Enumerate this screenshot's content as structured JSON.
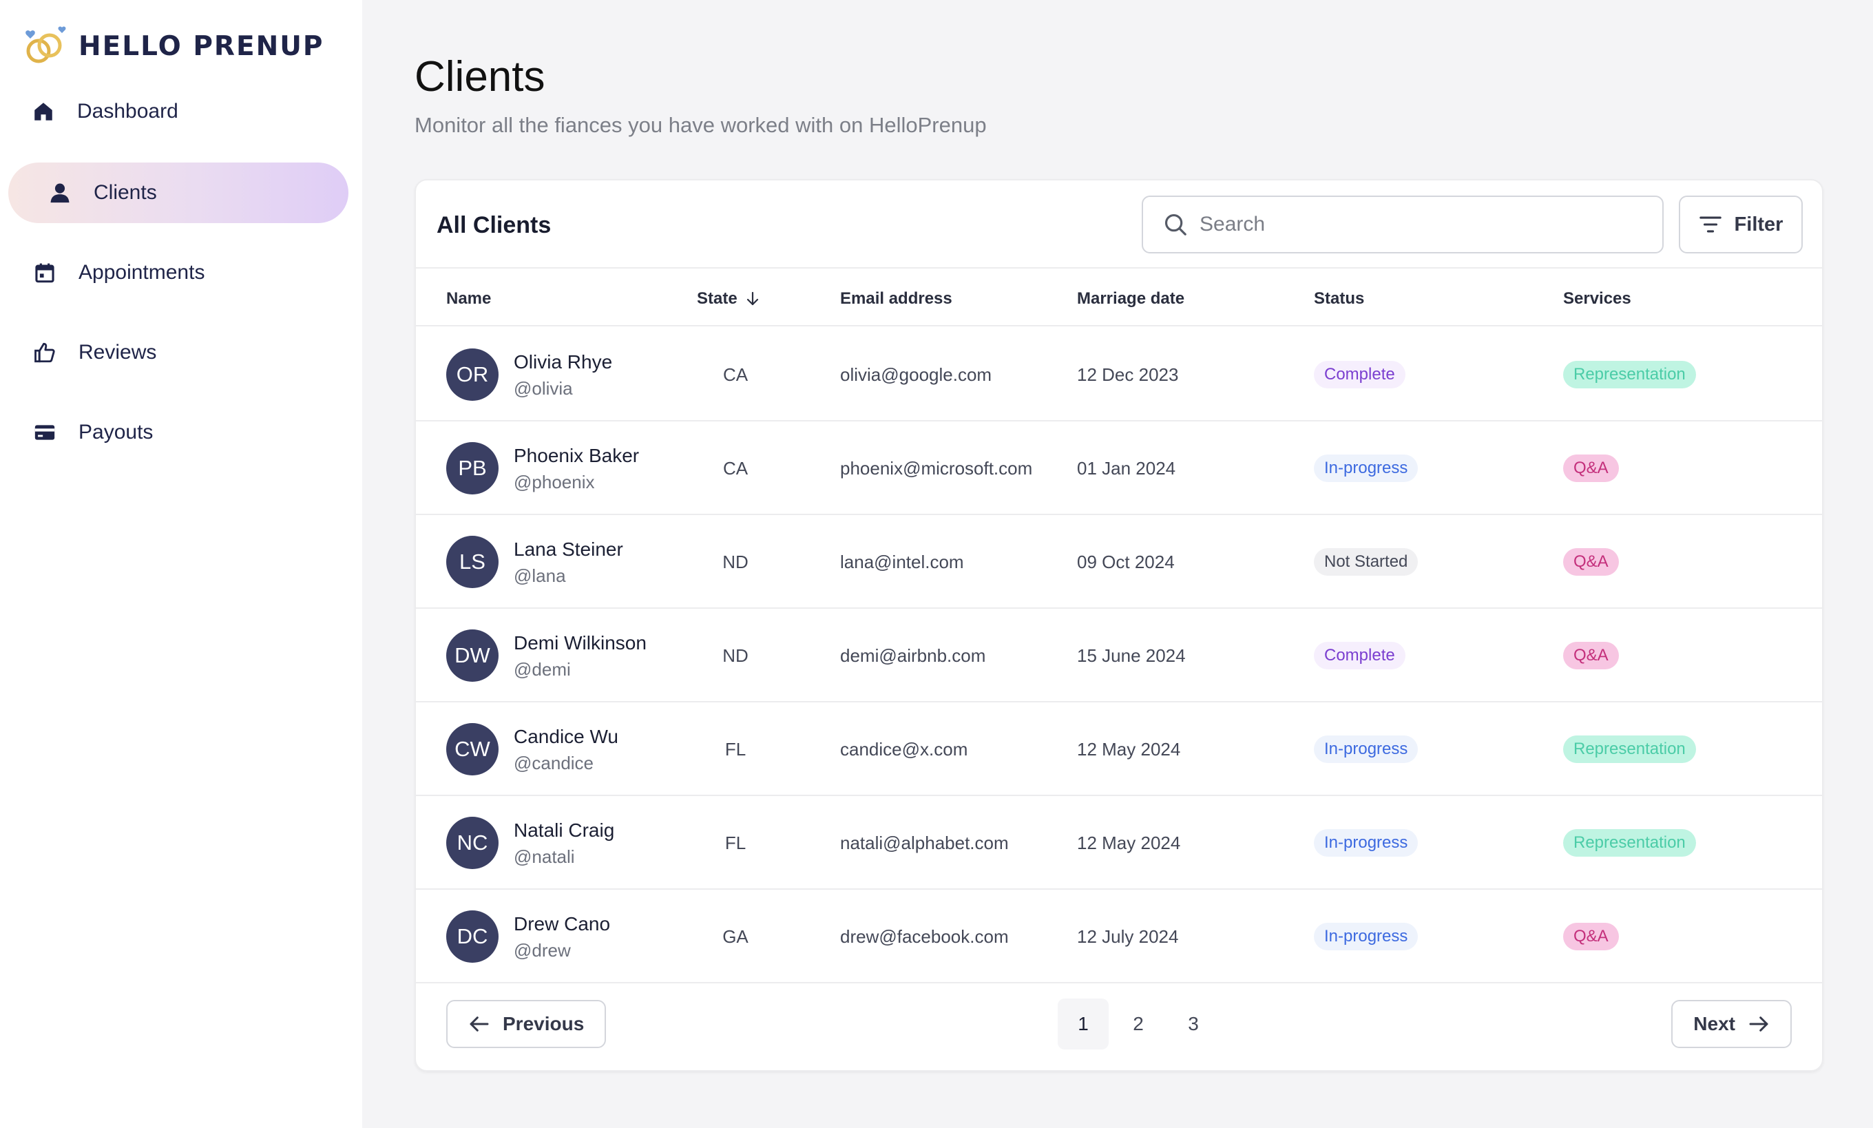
{
  "brand": {
    "name": "HELLO PRENUP"
  },
  "sidebar": {
    "items": [
      {
        "label": "Dashboard",
        "icon": "home-icon"
      },
      {
        "label": "Clients",
        "icon": "user-icon",
        "active": true
      },
      {
        "label": "Appointments",
        "icon": "calendar-icon"
      },
      {
        "label": "Reviews",
        "icon": "thumbs-up-icon"
      },
      {
        "label": "Payouts",
        "icon": "credit-card-icon"
      }
    ]
  },
  "header": {
    "title": "Clients",
    "subtitle": "Monitor all the fiances you have worked with on HelloPrenup"
  },
  "card": {
    "title": "All Clients",
    "search_placeholder": "Search",
    "filter_label": "Filter"
  },
  "table": {
    "columns": [
      "Name",
      "State",
      "Email address",
      "Marriage date",
      "Status",
      "Services"
    ],
    "rows": [
      {
        "initials": "OR",
        "name": "Olivia Rhye",
        "handle": "@olivia",
        "state": "CA",
        "email": "olivia@google.com",
        "date": "12 Dec 2023",
        "status": "Complete",
        "service": "Representation"
      },
      {
        "initials": "PB",
        "name": "Phoenix Baker",
        "handle": "@phoenix",
        "state": "CA",
        "email": "phoenix@microsoft.com",
        "date": "01 Jan 2024",
        "status": "In-progress",
        "service": "Q&A"
      },
      {
        "initials": "LS",
        "name": "Lana Steiner",
        "handle": "@lana",
        "state": "ND",
        "email": "lana@intel.com",
        "date": "09 Oct 2024",
        "status": "Not Started",
        "service": "Q&A"
      },
      {
        "initials": "DW",
        "name": "Demi Wilkinson",
        "handle": "@demi",
        "state": "ND",
        "email": "demi@airbnb.com",
        "date": "15 June 2024",
        "status": "Complete",
        "service": "Q&A"
      },
      {
        "initials": "CW",
        "name": "Candice Wu",
        "handle": "@candice",
        "state": "FL",
        "email": "candice@x.com",
        "date": "12 May 2024",
        "status": "In-progress",
        "service": "Representation"
      },
      {
        "initials": "NC",
        "name": "Natali Craig",
        "handle": "@natali",
        "state": "FL",
        "email": "natali@alphabet.com",
        "date": "12 May 2024",
        "status": "In-progress",
        "service": "Representation"
      },
      {
        "initials": "DC",
        "name": "Drew Cano",
        "handle": "@drew",
        "state": "GA",
        "email": "drew@facebook.com",
        "date": "12 July 2024",
        "status": "In-progress",
        "service": "Q&A"
      }
    ]
  },
  "pagination": {
    "previous_label": "Previous",
    "next_label": "Next",
    "pages": [
      "1",
      "2",
      "3"
    ],
    "current": "1"
  },
  "colors": {
    "accent_navy": "#1f2448",
    "avatar_bg": "#3a3f63",
    "active_nav_gradient_start": "#f6e6e4",
    "active_nav_gradient_end": "#dfcdf6"
  }
}
